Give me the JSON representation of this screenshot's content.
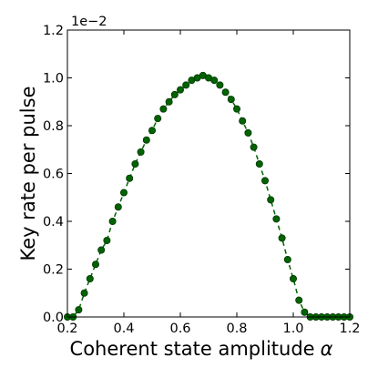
{
  "chart_data": {
    "type": "line",
    "title": "",
    "xlabel": "Coherent state amplitude",
    "xlabel_symbol": "α",
    "ylabel": "Key rate per pulse",
    "y_offset_label": "1e−2",
    "xlim": [
      0.2,
      1.2
    ],
    "ylim": [
      0.0,
      1.2
    ],
    "x_ticks": [
      0.2,
      0.4,
      0.6,
      0.8,
      1.0,
      1.2
    ],
    "x_tick_labels": [
      "0.2",
      "0.4",
      "0.6",
      "0.8",
      "1.0",
      "1.2"
    ],
    "y_ticks": [
      0.0,
      0.2,
      0.4,
      0.6,
      0.8,
      1.0,
      1.2
    ],
    "y_tick_labels": [
      "0.0",
      "0.2",
      "0.4",
      "0.6",
      "0.8",
      "1.0",
      "1.2"
    ],
    "grid": false,
    "legend": "none",
    "series": [
      {
        "color": "#006400",
        "marker": "circle",
        "line_style": "dashed",
        "x": [
          0.2,
          0.22,
          0.24,
          0.26,
          0.28,
          0.3,
          0.32,
          0.34,
          0.36,
          0.38,
          0.4,
          0.42,
          0.44,
          0.46,
          0.48,
          0.5,
          0.52,
          0.54,
          0.56,
          0.58,
          0.6,
          0.62,
          0.64,
          0.66,
          0.68,
          0.7,
          0.72,
          0.74,
          0.76,
          0.78,
          0.8,
          0.82,
          0.84,
          0.86,
          0.88,
          0.9,
          0.92,
          0.94,
          0.96,
          0.98,
          1.0,
          1.02,
          1.04,
          1.06,
          1.08,
          1.1,
          1.12,
          1.14,
          1.16,
          1.18,
          1.2
        ],
        "values": [
          0.0,
          0.0,
          0.03,
          0.1,
          0.16,
          0.22,
          0.28,
          0.32,
          0.4,
          0.46,
          0.52,
          0.58,
          0.64,
          0.69,
          0.74,
          0.78,
          0.83,
          0.87,
          0.9,
          0.93,
          0.95,
          0.97,
          0.99,
          1.0,
          1.01,
          1.0,
          0.99,
          0.97,
          0.94,
          0.91,
          0.87,
          0.82,
          0.77,
          0.71,
          0.64,
          0.57,
          0.49,
          0.41,
          0.33,
          0.24,
          0.16,
          0.07,
          0.02,
          0.0,
          0.0,
          0.0,
          0.0,
          0.0,
          0.0,
          0.0,
          0.0
        ]
      }
    ]
  }
}
